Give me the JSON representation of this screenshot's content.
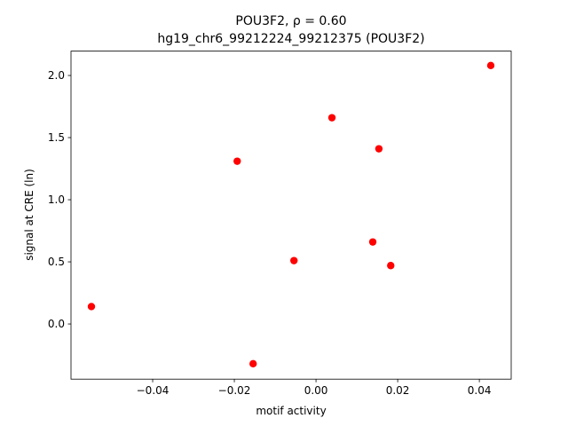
{
  "chart_data": {
    "type": "scatter",
    "title": "POU3F2, ρ = 0.60",
    "subtitle": "hg19_chr6_99212224_99212375 (POU3F2)",
    "x_label": "motif activity",
    "y_label": "signal at CRE (ln)",
    "color": "#ff0000",
    "x": [
      -0.055,
      -0.0193,
      -0.0154,
      -0.0054,
      0.0039,
      0.0139,
      0.0154,
      0.0183,
      0.0428
    ],
    "values": [
      0.14,
      1.31,
      -0.32,
      0.51,
      1.66,
      0.66,
      1.41,
      0.47,
      2.08
    ],
    "xlim": [
      -0.06,
      0.0478
    ],
    "ylim": [
      -0.444,
      2.196
    ],
    "xticks": [
      {
        "value": -0.04,
        "label": "−0.04"
      },
      {
        "value": -0.02,
        "label": "−0.02"
      },
      {
        "value": 0,
        "label": "0.00"
      },
      0.02,
      0.04
    ],
    "yticks": [
      {
        "value": 0,
        "label": "0.0"
      },
      0.5,
      {
        "value": 1,
        "label": "1.0"
      },
      1.5,
      {
        "value": 2,
        "label": "2.0"
      }
    ]
  }
}
